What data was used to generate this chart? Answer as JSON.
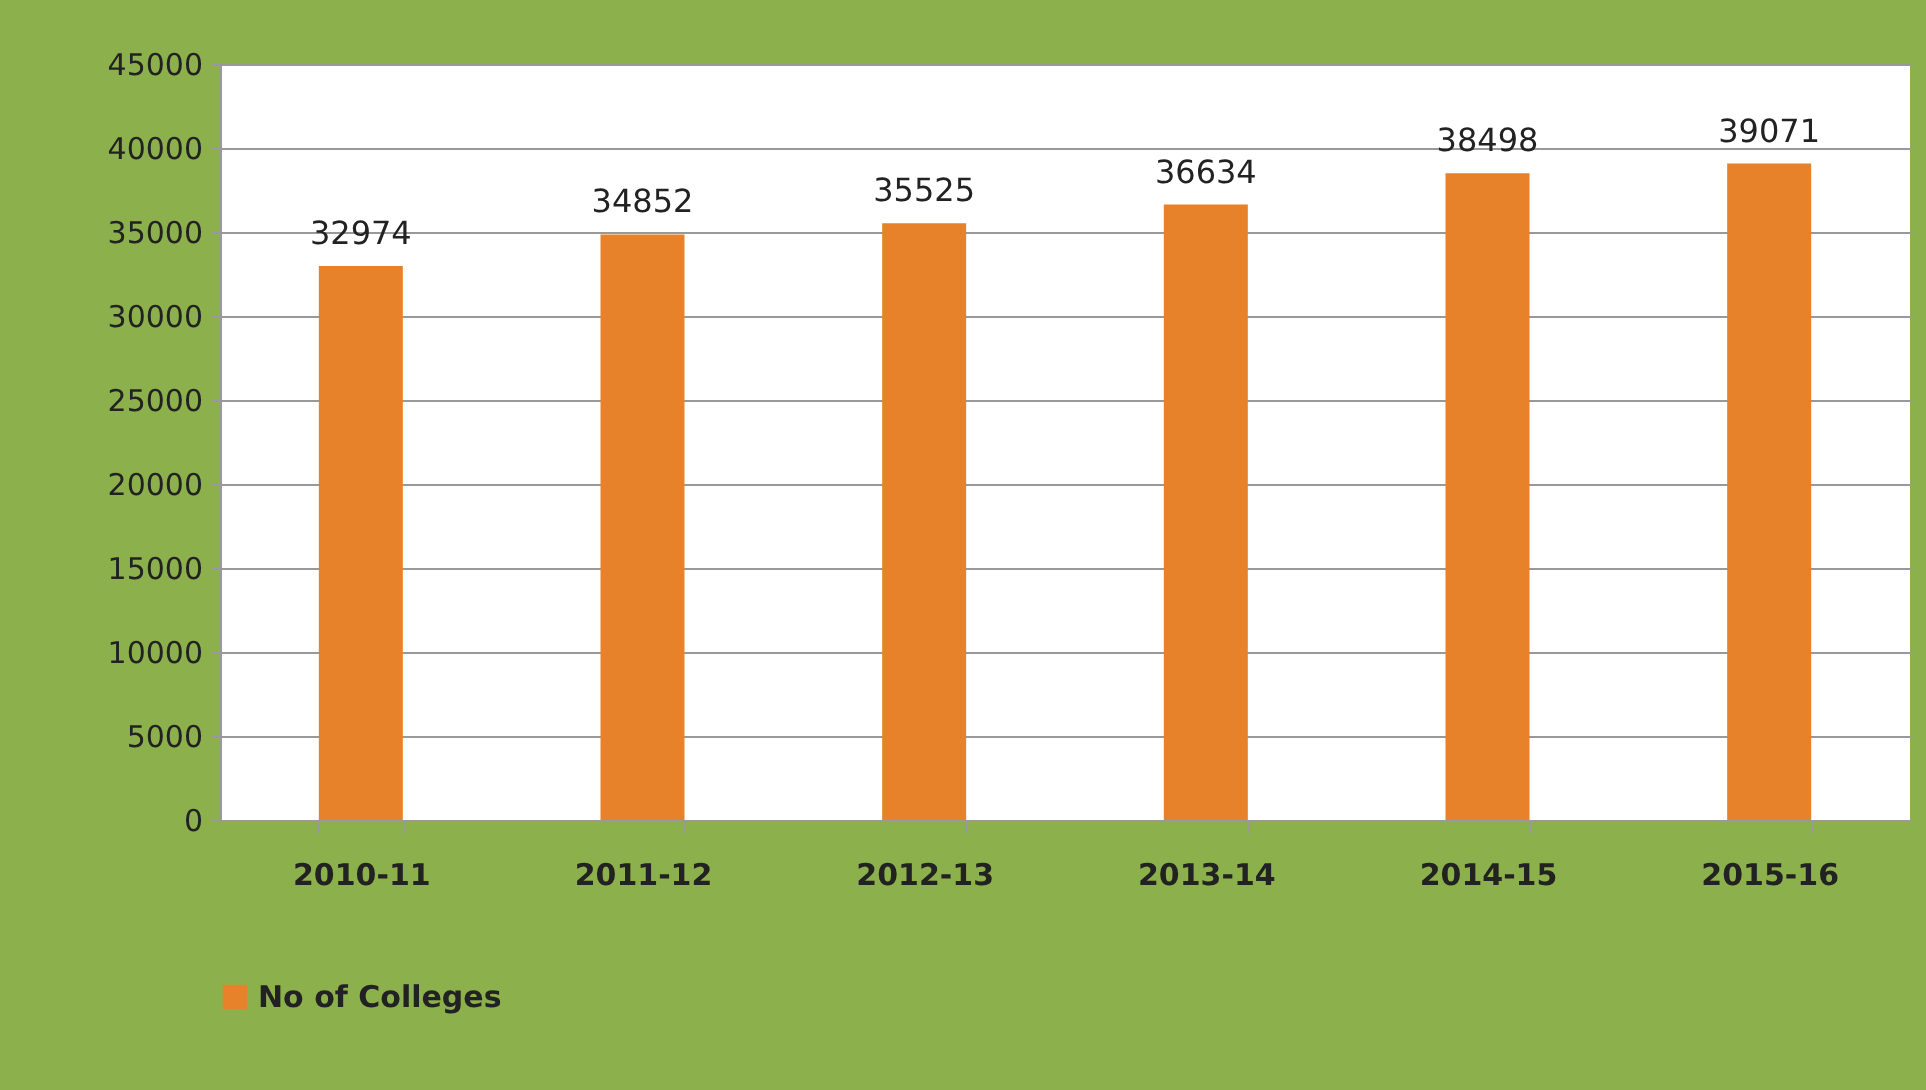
{
  "chart_data": {
    "type": "bar",
    "categories": [
      "2010-11",
      "2011-12",
      "2012-13",
      "2013-14",
      "2014-15",
      "2015-16"
    ],
    "series": [
      {
        "name": "No of Colleges",
        "color": "#e8822a",
        "values": [
          32974,
          34852,
          35525,
          36634,
          38498,
          39071
        ]
      }
    ],
    "ylim": [
      0,
      45000
    ],
    "yticks": [
      0,
      5000,
      10000,
      15000,
      20000,
      25000,
      30000,
      35000,
      40000,
      45000
    ],
    "grid": "y",
    "legend": "bottom",
    "data_labels": true
  }
}
